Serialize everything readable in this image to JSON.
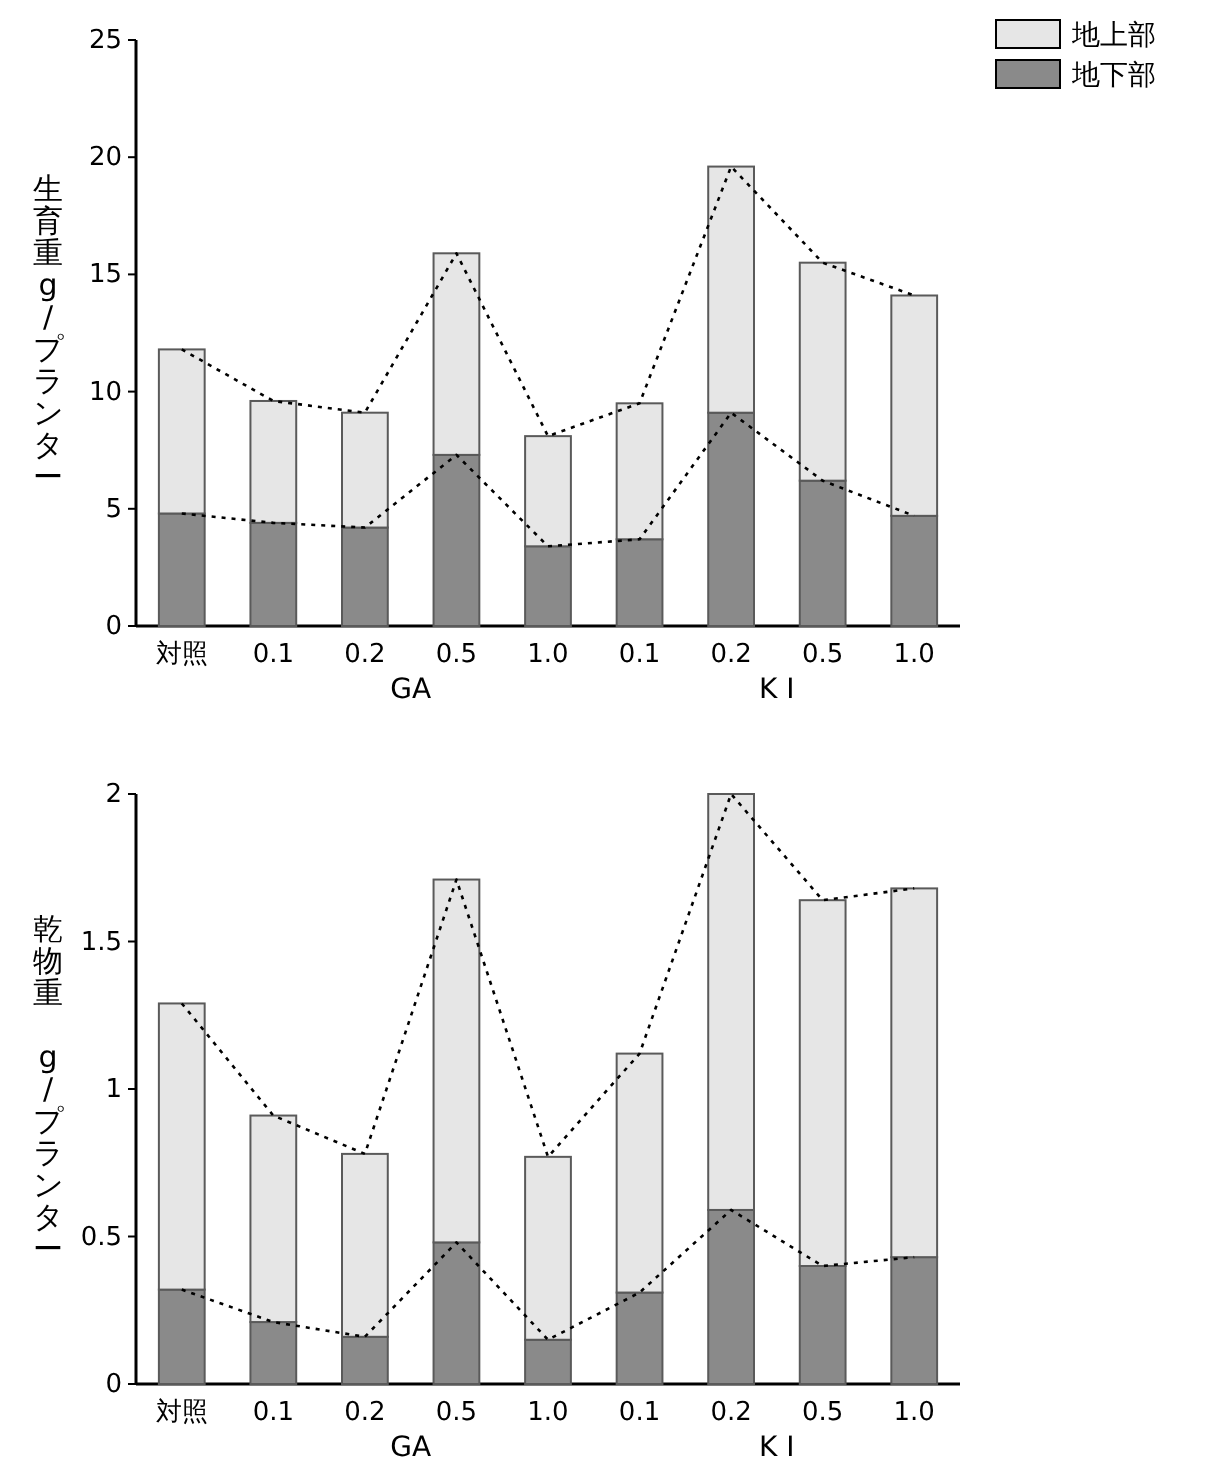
{
  "chart_data": [
    {
      "type": "bar",
      "stacked": true,
      "ylabel": "生育重g/プランター",
      "categories": [
        "対照",
        "0.1",
        "0.2",
        "0.5",
        "1.0",
        "0.1",
        "0.2",
        "0.5",
        "1.0"
      ],
      "ylim": [
        0,
        25
      ],
      "yticks": [
        0,
        5,
        10,
        15,
        20,
        25
      ],
      "legend": "top right",
      "annotations": [
        "GA",
        "K I"
      ],
      "series": [
        {
          "name": "地下部",
          "color": "#8a8a8a",
          "values": [
            4.8,
            4.4,
            4.2,
            7.3,
            3.4,
            3.7,
            9.1,
            6.2,
            4.7
          ]
        },
        {
          "name": "地上部",
          "color": "#e6e6e6",
          "values": [
            7.0,
            5.2,
            4.9,
            8.6,
            4.7,
            5.8,
            10.5,
            9.3,
            9.4
          ]
        },
        {
          "type": "line",
          "line_style": "dotted",
          "color": "#000000",
          "values": [
            4.8,
            4.4,
            4.2,
            7.3,
            3.4,
            3.7,
            9.1,
            6.2,
            4.7
          ]
        },
        {
          "type": "line",
          "line_style": "dotted",
          "color": "#000000",
          "values": [
            11.8,
            9.6,
            9.1,
            15.9,
            8.1,
            9.5,
            19.6,
            15.5,
            14.1
          ]
        }
      ]
    },
    {
      "type": "bar",
      "stacked": true,
      "ylabel": "乾物重 g/プランター",
      "categories": [
        "対照",
        "0.1",
        "0.2",
        "0.5",
        "1.0",
        "0.1",
        "0.2",
        "0.5",
        "1.0"
      ],
      "ylim": [
        0,
        2
      ],
      "yticks": [
        0,
        0.5,
        1,
        1.5,
        2
      ],
      "annotations": [
        "GA",
        "K I"
      ],
      "series": [
        {
          "color": "#8a8a8a",
          "values": [
            0.32,
            0.21,
            0.16,
            0.48,
            0.15,
            0.31,
            0.59,
            0.4,
            0.43
          ]
        },
        {
          "color": "#e6e6e6",
          "values": [
            0.97,
            0.7,
            0.62,
            1.23,
            0.62,
            0.81,
            1.41,
            1.24,
            1.25
          ]
        },
        {
          "type": "line",
          "line_style": "dotted",
          "color": "#000000",
          "values": [
            0.32,
            0.21,
            0.16,
            0.48,
            0.15,
            0.31,
            0.59,
            0.4,
            0.43
          ]
        },
        {
          "type": "line",
          "line_style": "dotted",
          "color": "#000000",
          "values": [
            1.29,
            0.91,
            0.78,
            1.71,
            0.77,
            1.12,
            2.0,
            1.64,
            1.68
          ]
        }
      ]
    }
  ]
}
